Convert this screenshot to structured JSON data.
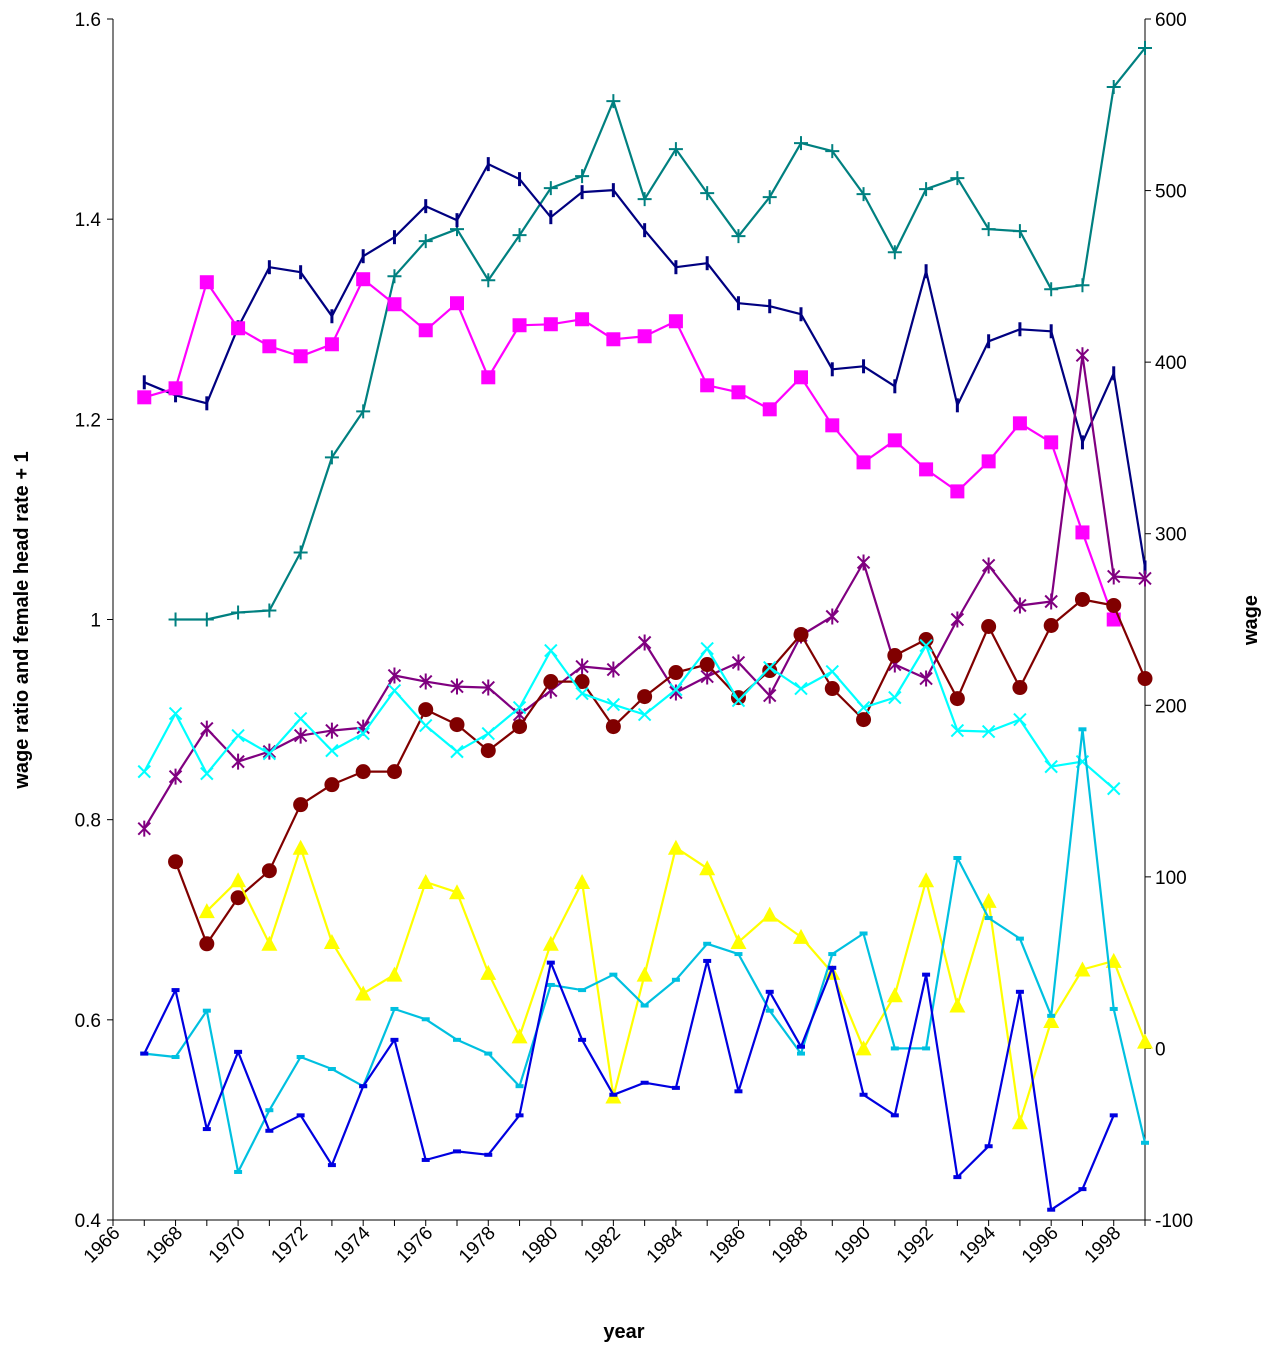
{
  "chart_data": {
    "type": "line",
    "title": "",
    "xlabel": "year",
    "ylabel_left": "wage ratio and female head rate + 1",
    "ylabel_right": "wage",
    "xlim": [
      1966,
      1999
    ],
    "ylim_left": [
      0.4,
      1.6
    ],
    "ylim_right": [
      -100,
      600
    ],
    "x_ticks": [
      1966,
      1968,
      1970,
      1972,
      1974,
      1976,
      1978,
      1980,
      1982,
      1984,
      1986,
      1988,
      1990,
      1992,
      1994,
      1996,
      1998
    ],
    "y_ticks_left": [
      "0.4",
      "0.6",
      "0.8",
      "1",
      "1.2",
      "1.4",
      "1.6"
    ],
    "y_ticks_right": [
      "-100",
      "0",
      "100",
      "200",
      "300",
      "400",
      "500",
      "600"
    ],
    "legend": "none",
    "grid": false,
    "series": [
      {
        "color": "#008080",
        "marker": "plus",
        "axis": "left",
        "x": [
          1968,
          1969,
          1970,
          1971,
          1972,
          1973,
          1974,
          1975,
          1976,
          1977,
          1978,
          1979,
          1980,
          1981,
          1982,
          1983,
          1984,
          1985,
          1986,
          1987,
          1988,
          1989,
          1990,
          1991,
          1992,
          1993,
          1994,
          1995,
          1996,
          1997,
          1998,
          1999
        ],
        "values": [
          1.0,
          1.0,
          1.007,
          1.009,
          1.067,
          1.162,
          1.208,
          1.343,
          1.378,
          1.39,
          1.339,
          1.384,
          1.431,
          1.443,
          1.518,
          1.42,
          1.47,
          1.426,
          1.383,
          1.422,
          1.476,
          1.468,
          1.425,
          1.367,
          1.43,
          1.441,
          1.39,
          1.388,
          1.33,
          1.334,
          1.532,
          1.571
        ]
      },
      {
        "color": "#000080",
        "marker": "vline",
        "axis": "left",
        "x": [
          1967,
          1968,
          1969,
          1970,
          1971,
          1972,
          1973,
          1974,
          1975,
          1976,
          1977,
          1978,
          1979,
          1980,
          1981,
          1982,
          1983,
          1984,
          1985,
          1986,
          1987,
          1988,
          1989,
          1990,
          1991,
          1992,
          1993,
          1994,
          1995,
          1996,
          1997,
          1998,
          1999
        ],
        "values": [
          1.237,
          1.224,
          1.216,
          1.292,
          1.352,
          1.347,
          1.303,
          1.363,
          1.382,
          1.413,
          1.399,
          1.455,
          1.44,
          1.402,
          1.427,
          1.429,
          1.389,
          1.352,
          1.356,
          1.316,
          1.313,
          1.305,
          1.25,
          1.253,
          1.233,
          1.348,
          1.214,
          1.278,
          1.29,
          1.288,
          1.177,
          1.246,
          1.052
        ]
      },
      {
        "color": "#FF00FF",
        "marker": "square",
        "axis": "left",
        "x": [
          1967,
          1968,
          1969,
          1970,
          1971,
          1972,
          1973,
          1974,
          1975,
          1976,
          1977,
          1978,
          1979,
          1980,
          1981,
          1982,
          1983,
          1984,
          1985,
          1986,
          1987,
          1988,
          1989,
          1990,
          1991,
          1992,
          1993,
          1994,
          1995,
          1996,
          1997,
          1998
        ],
        "values": [
          1.222,
          1.231,
          1.337,
          1.291,
          1.273,
          1.263,
          1.275,
          1.34,
          1.315,
          1.289,
          1.316,
          1.242,
          1.294,
          1.295,
          1.3,
          1.28,
          1.283,
          1.298,
          1.234,
          1.227,
          1.21,
          1.242,
          1.194,
          1.157,
          1.179,
          1.15,
          1.128,
          1.158,
          1.196,
          1.177,
          1.087,
          1.0
        ]
      },
      {
        "color": "#800080",
        "marker": "star",
        "axis": "left",
        "x": [
          1967,
          1968,
          1969,
          1970,
          1971,
          1972,
          1973,
          1974,
          1975,
          1976,
          1977,
          1978,
          1979,
          1980,
          1981,
          1982,
          1983,
          1984,
          1985,
          1986,
          1987,
          1988,
          1989,
          1990,
          1991,
          1992,
          1993,
          1994,
          1995,
          1996,
          1997,
          1998,
          1999
        ],
        "values": [
          0.791,
          0.843,
          0.891,
          0.858,
          0.868,
          0.884,
          0.889,
          0.892,
          0.944,
          0.938,
          0.933,
          0.932,
          0.905,
          0.929,
          0.953,
          0.95,
          0.977,
          0.927,
          0.943,
          0.957,
          0.924,
          0.984,
          1.003,
          1.057,
          0.955,
          0.941,
          1.0,
          1.054,
          1.014,
          1.018,
          1.264,
          1.043,
          1.041
        ]
      },
      {
        "color": "#800000",
        "marker": "circle",
        "axis": "left",
        "x": [
          1968,
          1969,
          1970,
          1971,
          1972,
          1973,
          1974,
          1975,
          1976,
          1977,
          1978,
          1979,
          1980,
          1981,
          1982,
          1983,
          1984,
          1985,
          1986,
          1987,
          1988,
          1989,
          1990,
          1991,
          1992,
          1993,
          1994,
          1995,
          1996,
          1997,
          1998,
          1999
        ],
        "values": [
          0.758,
          0.676,
          0.722,
          0.749,
          0.815,
          0.835,
          0.848,
          0.848,
          0.91,
          0.895,
          0.869,
          0.893,
          0.938,
          0.938,
          0.893,
          0.923,
          0.947,
          0.955,
          0.922,
          0.949,
          0.985,
          0.931,
          0.9,
          0.964,
          0.98,
          0.921,
          0.993,
          0.932,
          0.994,
          1.02,
          1.014,
          0.941
        ]
      },
      {
        "color": "#00FFFF",
        "marker": "x",
        "axis": "left",
        "x": [
          1967,
          1968,
          1969,
          1970,
          1971,
          1972,
          1973,
          1974,
          1975,
          1976,
          1977,
          1978,
          1979,
          1980,
          1981,
          1982,
          1983,
          1984,
          1985,
          1986,
          1987,
          1988,
          1989,
          1990,
          1991,
          1992,
          1993,
          1994,
          1995,
          1996,
          1997,
          1998
        ],
        "values": [
          0.848,
          0.906,
          0.846,
          0.884,
          0.866,
          0.901,
          0.869,
          0.886,
          0.929,
          0.894,
          0.868,
          0.886,
          0.912,
          0.969,
          0.926,
          0.915,
          0.905,
          0.93,
          0.971,
          0.919,
          0.952,
          0.931,
          0.948,
          0.912,
          0.922,
          0.974,
          0.889,
          0.888,
          0.9,
          0.853,
          0.858,
          0.831
        ]
      },
      {
        "color": "#FFFF00",
        "marker": "triangle",
        "axis": "right",
        "x": [
          1969,
          1970,
          1971,
          1972,
          1973,
          1974,
          1975,
          1976,
          1977,
          1978,
          1979,
          1980,
          1981,
          1982,
          1983,
          1984,
          1985,
          1986,
          1987,
          1988,
          1989,
          1990,
          1991,
          1992,
          1993,
          1994,
          1995,
          1996,
          1997,
          1998,
          1999
        ],
        "values": [
          80,
          98,
          61,
          117,
          62,
          32,
          43,
          97,
          91,
          44,
          7,
          61,
          97,
          -28,
          43,
          117,
          105,
          62,
          78,
          65,
          44,
          0,
          31,
          98,
          25,
          86,
          -43,
          16,
          46,
          51,
          4
        ]
      },
      {
        "color": "#00C0E0",
        "marker": "dash",
        "axis": "right",
        "x": [
          1967,
          1968,
          1969,
          1970,
          1971,
          1972,
          1973,
          1974,
          1975,
          1976,
          1977,
          1978,
          1979,
          1980,
          1981,
          1982,
          1983,
          1984,
          1985,
          1986,
          1987,
          1988,
          1989,
          1990,
          1991,
          1992,
          1993,
          1994,
          1995,
          1996,
          1997,
          1998,
          1999
        ],
        "values": [
          -3,
          -5,
          22,
          -72,
          -36,
          -5,
          -12,
          -22,
          23,
          17,
          5,
          -3,
          -22,
          37,
          34,
          43,
          25,
          40,
          61,
          55,
          22,
          -3,
          55,
          67,
          0,
          0,
          111,
          76,
          64,
          19,
          186,
          23,
          -55
        ]
      },
      {
        "color": "#0000E0",
        "marker": "dash",
        "axis": "right",
        "x": [
          1967,
          1968,
          1969,
          1970,
          1971,
          1972,
          1973,
          1974,
          1975,
          1976,
          1977,
          1978,
          1979,
          1980,
          1981,
          1982,
          1983,
          1984,
          1985,
          1986,
          1987,
          1988,
          1989,
          1990,
          1991,
          1992,
          1993,
          1994,
          1995,
          1996,
          1997,
          1998
        ],
        "values": [
          -3,
          34,
          -47,
          -2,
          -48,
          -39,
          -68,
          -22,
          5,
          -65,
          -60,
          -62,
          -39,
          50,
          5,
          -27,
          -20,
          -23,
          51,
          -25,
          33,
          1,
          47,
          -27,
          -39,
          43,
          -75,
          -57,
          33,
          -94,
          -82,
          -39
        ]
      }
    ]
  }
}
